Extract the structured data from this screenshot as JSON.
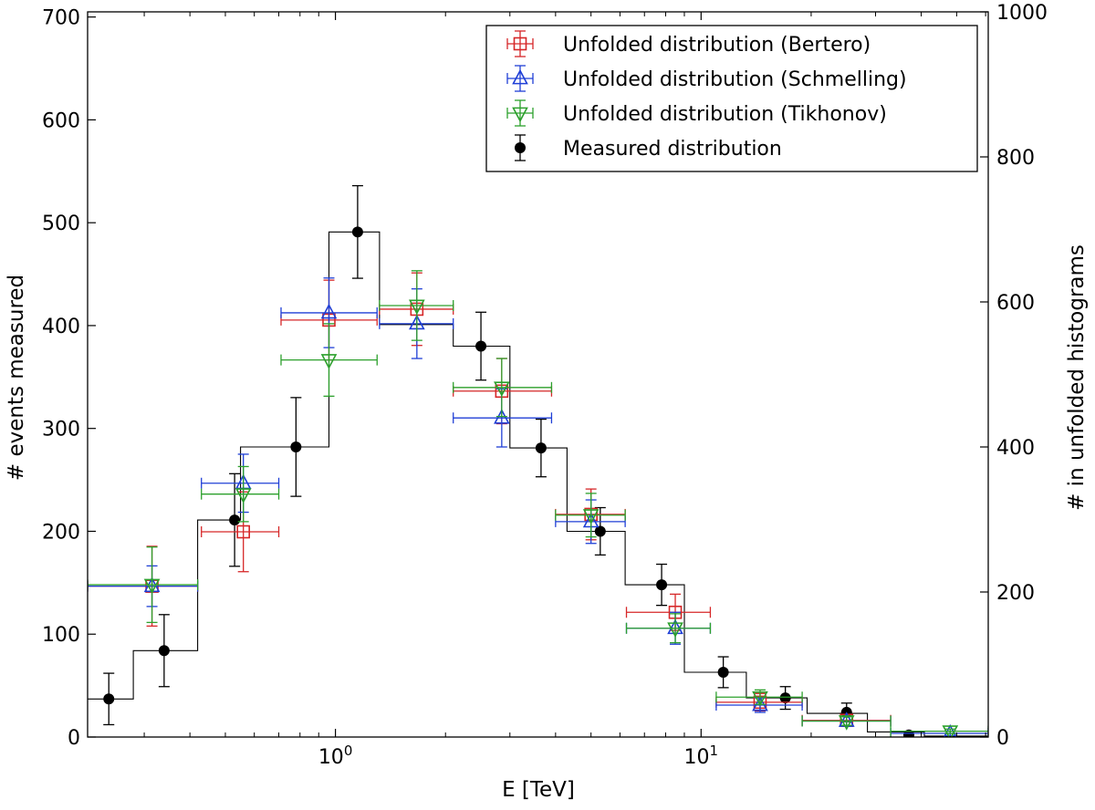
{
  "chart_data": {
    "type": "scatter",
    "title": "",
    "xlabel": "E [TeV]",
    "ylabel": "# events measured",
    "y2label": "# in unfolded histograms",
    "xscale": "log",
    "xlim": [
      0.21,
      61
    ],
    "ylim": [
      0,
      705
    ],
    "y2lim": [
      0,
      1000
    ],
    "x_ticks": [
      {
        "value": 1,
        "base": "10",
        "exp": "0"
      },
      {
        "value": 10,
        "base": "10",
        "exp": "1"
      }
    ],
    "y_ticks": [
      "0",
      "100",
      "200",
      "300",
      "400",
      "500",
      "600",
      "700"
    ],
    "y2_ticks": [
      "0",
      "200",
      "400",
      "600",
      "800",
      "1000"
    ],
    "legend": {
      "position": "top-right",
      "entries": [
        {
          "label": "Unfolded distribution (Bertero)",
          "color": "#d62728",
          "marker": "square"
        },
        {
          "label": "Unfolded distribution (Schmelling)",
          "color": "#1f3fd6",
          "marker": "triangle-up"
        },
        {
          "label": "Unfolded distribution (Tikhonov)",
          "color": "#2ca02c",
          "marker": "triangle-down"
        },
        {
          "label": "Measured distribution",
          "color": "#000000",
          "marker": "circle"
        }
      ]
    },
    "histogram": {
      "color": "#000000",
      "edges": [
        0.21,
        0.28,
        0.42,
        0.55,
        0.7,
        0.96,
        1.32,
        2.1,
        3.0,
        4.3,
        6.2,
        9.0,
        13.3,
        19.5,
        28.5,
        40.8,
        61.0
      ],
      "values": [
        37,
        84,
        211,
        282,
        282,
        491,
        401,
        380,
        281,
        200,
        148,
        63,
        38,
        23,
        5,
        1
      ]
    },
    "series": [
      {
        "name": "Measured distribution",
        "axis": "left",
        "color": "#000000",
        "marker": "circle",
        "x": [
          0.24,
          0.34,
          0.53,
          0.78,
          1.15,
          2.5,
          3.65,
          5.3,
          7.8,
          11.5,
          17.0,
          25.0,
          37.0
        ],
        "y": [
          37,
          84,
          211,
          282,
          491,
          380,
          281,
          200,
          148,
          63,
          38,
          24,
          2
        ],
        "yerr": [
          25,
          35,
          45,
          48,
          45,
          33,
          28,
          23,
          20,
          15,
          11,
          9,
          3
        ]
      },
      {
        "name": "Unfolded distribution (Bertero)",
        "axis": "right",
        "color": "#d62728",
        "marker": "square",
        "x": [
          0.315,
          0.56,
          0.96,
          1.67,
          2.85,
          5.0,
          8.5,
          14.5,
          25.0
        ],
        "xlo": [
          0.21,
          0.43,
          0.71,
          1.32,
          2.1,
          4.0,
          6.25,
          11.0,
          18.9
        ],
        "xhi": [
          0.42,
          0.7,
          1.3,
          2.1,
          3.9,
          6.2,
          10.6,
          18.9,
          33.0
        ],
        "y": [
          208,
          283,
          575,
          590,
          477,
          307,
          172,
          48,
          23
        ],
        "yerr": [
          55,
          55,
          55,
          50,
          45,
          35,
          25,
          12,
          8
        ]
      },
      {
        "name": "Unfolded distribution (Schmelling)",
        "axis": "right",
        "color": "#1f3fd6",
        "marker": "triangle-up",
        "x": [
          0.315,
          0.56,
          0.96,
          1.67,
          2.85,
          5.0,
          8.5,
          14.5,
          25.0,
          48.0
        ],
        "xlo": [
          0.21,
          0.43,
          0.71,
          1.32,
          2.1,
          4.0,
          6.25,
          11.0,
          18.9,
          33.0
        ],
        "xhi": [
          0.42,
          0.7,
          1.3,
          2.1,
          3.9,
          6.2,
          10.6,
          18.9,
          33.0,
          61.0
        ],
        "y": [
          208,
          350,
          585,
          570,
          440,
          297,
          150,
          44,
          22,
          5
        ],
        "yerr": [
          28,
          40,
          48,
          48,
          40,
          30,
          22,
          10,
          6,
          3
        ]
      },
      {
        "name": "Unfolded distribution (Tikhonov)",
        "axis": "right",
        "color": "#2ca02c",
        "marker": "triangle-down",
        "x": [
          0.315,
          0.56,
          0.96,
          1.67,
          2.85,
          5.0,
          8.5,
          14.5,
          25.0,
          48.0
        ],
        "xlo": [
          0.21,
          0.43,
          0.71,
          1.32,
          2.1,
          4.0,
          6.25,
          11.0,
          18.9,
          33.0
        ],
        "xhi": [
          0.42,
          0.7,
          1.3,
          2.1,
          3.9,
          6.2,
          10.6,
          18.9,
          33.0,
          61.0
        ],
        "y": [
          210,
          335,
          520,
          595,
          482,
          306,
          150,
          55,
          22,
          8
        ],
        "yerr": [
          52,
          38,
          50,
          48,
          40,
          30,
          20,
          10,
          6,
          3
        ]
      }
    ]
  }
}
